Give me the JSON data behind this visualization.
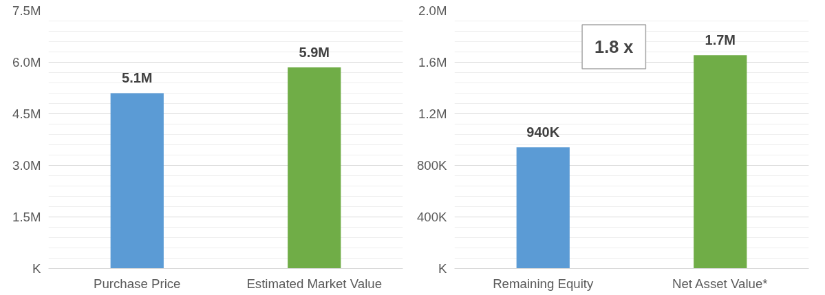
{
  "chart_data": [
    {
      "type": "bar",
      "categories": [
        "Purchase Price",
        "Estimated Market Value"
      ],
      "values": [
        5100000,
        5850000
      ],
      "colors": [
        "#5b9bd5",
        "#70ad47"
      ],
      "value_labels": [
        "5.1M",
        "5.9M"
      ],
      "ylim": [
        0,
        7500000
      ],
      "yticks": [
        {
          "value": 0,
          "label": "K"
        },
        {
          "value": 1500000,
          "label": "1.5M"
        },
        {
          "value": 3000000,
          "label": "3.0M"
        },
        {
          "value": 4500000,
          "label": "4.5M"
        },
        {
          "value": 6000000,
          "label": "6.0M"
        },
        {
          "value": 7500000,
          "label": "7.5M"
        }
      ],
      "grid": "y"
    },
    {
      "type": "bar",
      "categories": [
        "Remaining Equity",
        "Net Asset Value*"
      ],
      "values": [
        940000,
        1655000
      ],
      "colors": [
        "#5b9bd5",
        "#70ad47"
      ],
      "value_labels": [
        "940K",
        "1.7M"
      ],
      "ylim": [
        0,
        2000000
      ],
      "yticks": [
        {
          "value": 0,
          "label": "K"
        },
        {
          "value": 400000,
          "label": "400K"
        },
        {
          "value": 800000,
          "label": "800K"
        },
        {
          "value": 1200000,
          "label": "1.2M"
        },
        {
          "value": 1600000,
          "label": "1.6M"
        },
        {
          "value": 2000000,
          "label": "2.0M"
        }
      ],
      "grid": "y",
      "annotations": [
        "1.8 x"
      ]
    }
  ]
}
